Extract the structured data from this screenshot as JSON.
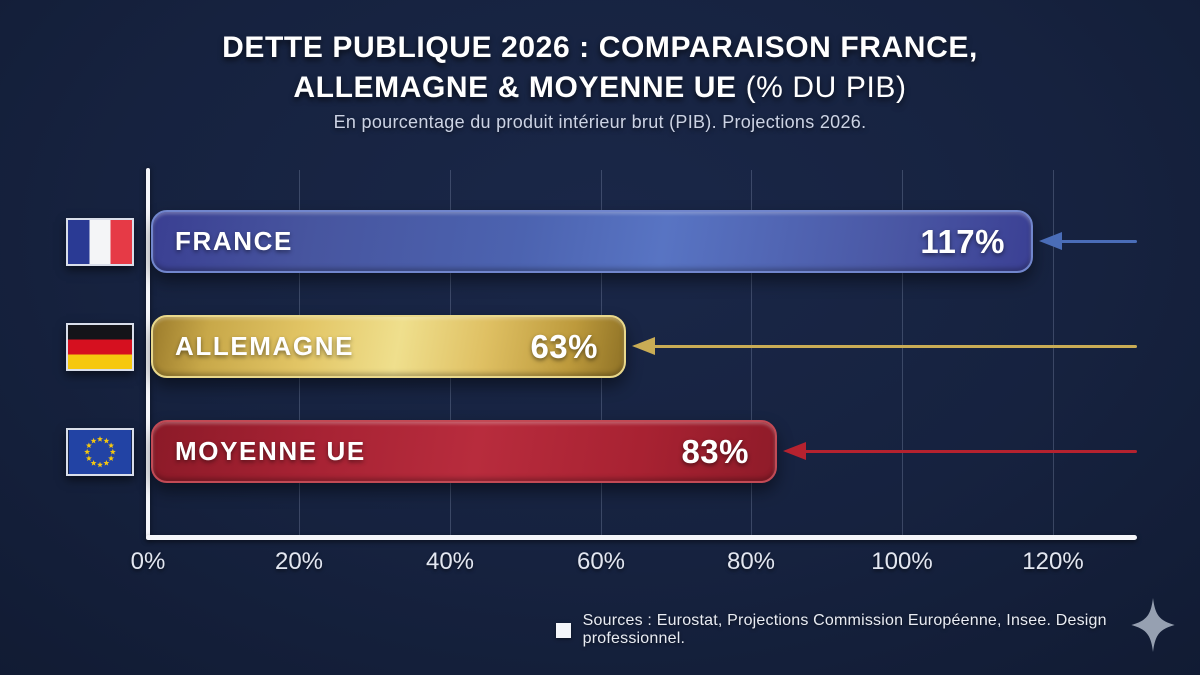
{
  "title": {
    "line1": "DETTE PUBLIQUE 2026 : COMPARAISON FRANCE,",
    "line2_strong": "ALLEMAGNE & MOYENNE UE",
    "line2_light": " (% DU PIB)"
  },
  "subtitle": "En pourcentage du produit intérieur brut (PIB). Projections 2026.",
  "chart_data": {
    "type": "bar",
    "orientation": "horizontal",
    "title": "DETTE PUBLIQUE 2026 : COMPARAISON FRANCE, ALLEMAGNE & MOYENNE UE (% DU PIB)",
    "subtitle": "En pourcentage du produit intérieur brut (PIB). Projections 2026.",
    "categories": [
      "FRANCE",
      "ALLEMAGNE",
      "MOYENNE UE"
    ],
    "values": [
      117,
      63,
      83
    ],
    "value_labels": [
      "117%",
      "63%",
      "83%"
    ],
    "unit": "% du PIB",
    "xlim": [
      0,
      130
    ],
    "x_ticks": [
      0,
      20,
      40,
      60,
      80,
      100,
      120
    ],
    "x_tick_labels": [
      "0%",
      "20%",
      "40%",
      "60%",
      "80%",
      "100%",
      "120%"
    ],
    "grid": "vertical-only",
    "legend": "none",
    "bar_colors": [
      "#4c63b0",
      "#e2c565",
      "#b82c3d"
    ],
    "arrow_colors": [
      "#4a6db8",
      "#c9ac55",
      "#b5222f"
    ],
    "flags": [
      "france-flag",
      "germany-flag",
      "eu-flag"
    ]
  },
  "footer": {
    "sources": "Sources : Eurostat, Projections Commission Européenne, Insee. Design professionnel."
  },
  "colors": {
    "background": "#16223f",
    "title_text": "#ffffff",
    "subtitle_text": "#ccd3e4",
    "axis": "#f5f6fa",
    "france_bar": "#4c63b0",
    "germany_bar": "#e2c565",
    "eu_average_bar": "#b82c3d",
    "eu_flag_star": "#f6c80e",
    "sparkle": "#96a0b1"
  }
}
